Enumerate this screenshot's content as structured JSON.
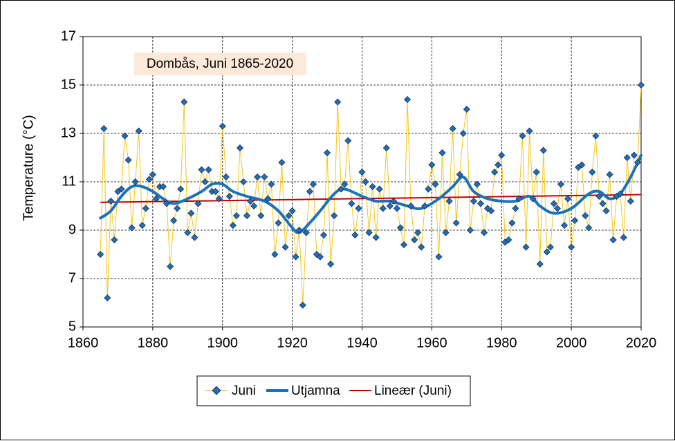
{
  "chart_data": {
    "type": "line",
    "title": "",
    "annotation": "Dombås, Juni 1865-2020",
    "xlabel": "",
    "ylabel": "Temperature (°C)",
    "xlim": [
      1860,
      2020
    ],
    "ylim": [
      5,
      17
    ],
    "xticks": [
      1860,
      1880,
      1900,
      1920,
      1940,
      1960,
      1980,
      2000,
      2020
    ],
    "yticks": [
      5,
      7,
      9,
      11,
      13,
      15,
      17
    ],
    "grid": true,
    "legend_position": "bottom",
    "colors": {
      "juni_line": "#f5c518",
      "juni_marker": "#1f6fb2",
      "juni_marker_edge": "#1b2f5a",
      "smooth": "#1a72bb",
      "linear": "#c00000",
      "annotation_bg": "#fde9d9"
    },
    "series": [
      {
        "name": "Juni",
        "x": [
          1865,
          1866,
          1867,
          1868,
          1869,
          1870,
          1871,
          1872,
          1873,
          1874,
          1875,
          1876,
          1877,
          1878,
          1879,
          1880,
          1881,
          1882,
          1883,
          1884,
          1885,
          1886,
          1887,
          1888,
          1889,
          1890,
          1891,
          1892,
          1893,
          1894,
          1895,
          1896,
          1897,
          1898,
          1899,
          1900,
          1901,
          1902,
          1903,
          1904,
          1905,
          1906,
          1907,
          1908,
          1909,
          1910,
          1911,
          1912,
          1913,
          1914,
          1915,
          1916,
          1917,
          1918,
          1919,
          1920,
          1921,
          1922,
          1923,
          1924,
          1925,
          1926,
          1927,
          1928,
          1929,
          1930,
          1931,
          1932,
          1933,
          1934,
          1935,
          1936,
          1937,
          1938,
          1939,
          1940,
          1941,
          1942,
          1943,
          1944,
          1945,
          1946,
          1947,
          1948,
          1949,
          1950,
          1951,
          1952,
          1953,
          1954,
          1955,
          1956,
          1957,
          1958,
          1959,
          1960,
          1961,
          1962,
          1963,
          1964,
          1965,
          1966,
          1967,
          1968,
          1969,
          1970,
          1971,
          1972,
          1973,
          1974,
          1975,
          1976,
          1977,
          1978,
          1979,
          1980,
          1981,
          1982,
          1983,
          1984,
          1985,
          1986,
          1987,
          1988,
          1989,
          1990,
          1991,
          1992,
          1993,
          1994,
          1995,
          1996,
          1997,
          1998,
          1999,
          2000,
          2001,
          2002,
          2003,
          2004,
          2005,
          2006,
          2007,
          2008,
          2009,
          2010,
          2011,
          2012,
          2013,
          2014,
          2015,
          2016,
          2017,
          2018,
          2019,
          2020
        ],
        "values": [
          8.0,
          13.2,
          6.2,
          10.2,
          8.6,
          10.6,
          10.7,
          12.9,
          11.9,
          9.1,
          11.0,
          13.1,
          9.2,
          9.9,
          11.1,
          11.3,
          10.3,
          10.8,
          10.8,
          10.1,
          7.5,
          9.4,
          9.9,
          10.7,
          14.3,
          8.9,
          9.7,
          8.7,
          10.1,
          11.5,
          11.0,
          11.5,
          10.6,
          10.6,
          10.3,
          13.3,
          11.2,
          10.4,
          9.2,
          9.6,
          12.4,
          11.0,
          9.6,
          10.2,
          10.0,
          11.2,
          9.6,
          11.2,
          10.3,
          10.9,
          8.0,
          9.3,
          11.8,
          8.3,
          9.6,
          9.8,
          7.9,
          9.0,
          5.9,
          8.9,
          10.6,
          10.9,
          8.0,
          7.9,
          8.8,
          12.2,
          7.6,
          9.6,
          14.3,
          10.7,
          10.9,
          12.7,
          10.1,
          8.8,
          9.9,
          11.4,
          11.0,
          8.9,
          10.8,
          8.7,
          10.7,
          9.9,
          12.4,
          10.0,
          10.2,
          9.9,
          9.1,
          8.4,
          14.4,
          10.0,
          8.6,
          8.9,
          8.3,
          10.0,
          10.7,
          11.7,
          10.9,
          7.9,
          12.2,
          8.9,
          10.2,
          13.2,
          9.3,
          11.3,
          13.0,
          14.0,
          9.0,
          10.2,
          10.9,
          10.1,
          8.9,
          9.9,
          9.8,
          11.4,
          11.7,
          12.1,
          8.5,
          8.6,
          9.3,
          9.9,
          10.3,
          12.9,
          8.3,
          13.1,
          10.3,
          11.4,
          7.6,
          12.3,
          8.1,
          8.3,
          10.1,
          9.9,
          10.9,
          9.2,
          10.3,
          8.3,
          9.4,
          11.6,
          11.7,
          9.6,
          9.1,
          11.4,
          12.9,
          10.4,
          10.1,
          9.8,
          11.3,
          8.6,
          10.4,
          10.5,
          8.7,
          12.0,
          10.2,
          12.1,
          11.8,
          15.0
        ]
      },
      {
        "name": "Utjamna",
        "x": [
          1865,
          1868,
          1871,
          1874,
          1877,
          1880,
          1883,
          1886,
          1890,
          1894,
          1897,
          1900,
          1903,
          1907,
          1912,
          1916,
          1920,
          1922,
          1925,
          1928,
          1932,
          1935,
          1940,
          1944,
          1948,
          1953,
          1957,
          1962,
          1966,
          1969,
          1972,
          1976,
          1980,
          1984,
          1988,
          1991,
          1995,
          2000,
          2005,
          2008,
          2011,
          2014,
          2017,
          2020
        ],
        "values": [
          9.5,
          9.8,
          10.4,
          10.8,
          10.8,
          10.6,
          10.3,
          10.1,
          10.3,
          10.6,
          10.9,
          10.9,
          10.6,
          10.4,
          10.2,
          9.8,
          9.1,
          8.9,
          9.3,
          9.8,
          10.5,
          10.7,
          10.4,
          10.2,
          10.2,
          10.0,
          9.9,
          10.3,
          10.8,
          11.2,
          10.6,
          10.3,
          10.2,
          10.2,
          10.4,
          10.0,
          9.7,
          9.9,
          10.5,
          10.6,
          10.3,
          10.5,
          11.2,
          12.1
        ]
      },
      {
        "name": "Lineær (Juni)",
        "x": [
          1865,
          2020
        ],
        "values": [
          10.15,
          10.47
        ]
      }
    ]
  }
}
